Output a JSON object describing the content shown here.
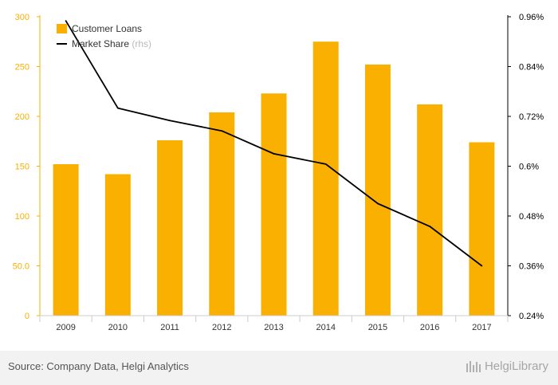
{
  "chart_data": {
    "type": "bar",
    "categories": [
      "2009",
      "2010",
      "2011",
      "2012",
      "2013",
      "2014",
      "2015",
      "2016",
      "2017"
    ],
    "series": [
      {
        "name": "Customer Loans",
        "kind": "bar",
        "axis": "left",
        "values": [
          152,
          142,
          176,
          204,
          223,
          275,
          252,
          212,
          174
        ],
        "color": "#F9B000"
      },
      {
        "name": "Market Share",
        "suffix": " (rhs)",
        "kind": "line",
        "axis": "right",
        "values": [
          0.95,
          0.74,
          0.71,
          0.685,
          0.63,
          0.605,
          0.51,
          0.455,
          0.36
        ],
        "color": "#000000"
      }
    ],
    "y_left": {
      "ylim": [
        0,
        300
      ],
      "ticks": [
        "0",
        "50.0",
        "100",
        "150",
        "200",
        "250",
        "300"
      ],
      "tick_values": [
        0,
        50,
        100,
        150,
        200,
        250,
        300
      ]
    },
    "y_right": {
      "ylim": [
        0.24,
        0.96
      ],
      "ticks": [
        "0.24%",
        "0.36%",
        "0.48%",
        "0.6%",
        "0.72%",
        "0.84%",
        "0.96%"
      ],
      "tick_values": [
        0.24,
        0.36,
        0.48,
        0.6,
        0.72,
        0.84,
        0.96
      ]
    },
    "legend_position": "top-left",
    "grid": false,
    "axis_color": "#F9B000"
  },
  "footer": {
    "source": "Source: Company Data, Helgi Analytics",
    "brand": "HelgiLibrary"
  }
}
